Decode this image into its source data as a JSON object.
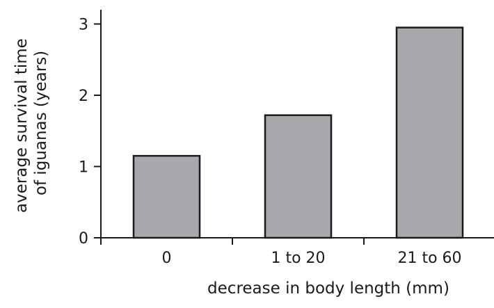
{
  "chart_data": {
    "type": "bar",
    "title": "",
    "categories": [
      "0",
      "1 to 20",
      "21 to 60"
    ],
    "values": [
      1.15,
      1.72,
      2.95
    ],
    "xlabel": "decrease in body length (mm)",
    "ylabel_lines": [
      "average survival time",
      "of iguanas (years)"
    ],
    "ylim": [
      0,
      3.2
    ],
    "yticks": [
      0,
      1,
      2,
      3
    ],
    "grid": false,
    "legend": "none",
    "bar_color": "#a7a8ab",
    "edge_color": "#1a1a1a"
  }
}
